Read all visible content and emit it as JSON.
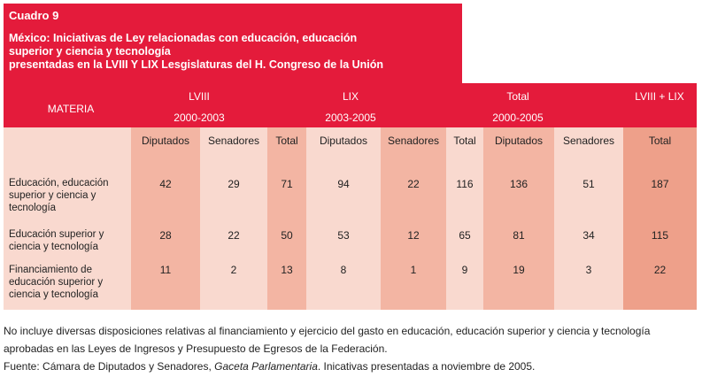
{
  "title": {
    "label": "Cuadro 9",
    "lines": [
      "México: Iniciativas de Ley relacionadas con educación, educación",
      "superior y ciencia y tecnología",
      "presentadas en la LVIII Y LIX Lesgislaturas del H. Congreso de la Unión"
    ]
  },
  "header": {
    "materia": "MATERIA",
    "groups": [
      {
        "name": "LVIII",
        "years": "2000-2003"
      },
      {
        "name": "LIX",
        "years": "2003-2005"
      },
      {
        "name": "Total",
        "years": "2000-2005"
      },
      {
        "name": "LVIII + LIX",
        "years": ""
      }
    ],
    "subheaders": [
      "Diputados",
      "Senadores",
      "Total",
      "Diputados",
      "Senadores",
      "Total",
      "Diputados",
      "Senadores",
      "Total"
    ]
  },
  "rows": [
    {
      "label": [
        "Educación, educación",
        "superior y ciencia y",
        "tecnología"
      ],
      "values": [
        "42",
        "29",
        "71",
        "94",
        "22",
        "116",
        "136",
        "51",
        "187"
      ]
    },
    {
      "label": [
        "Educación superior y",
        "ciencia y tecnología"
      ],
      "values": [
        "28",
        "22",
        "50",
        "53",
        "12",
        "65",
        "81",
        "34",
        "115"
      ]
    },
    {
      "label": [
        "Financiamiento de",
        "educación superior y",
        "ciencia y tecnología"
      ],
      "values": [
        "11",
        "2",
        "13",
        "8",
        "1",
        "9",
        "19",
        "3",
        "22"
      ]
    }
  ],
  "notes": {
    "line1": "No incluye diversas disposiciones relativas al financiamiento y ejercicio del gasto en educación, educación superior y ciencia y tecnología",
    "line2": "aprobadas en las Leyes de Ingresos y Presupuesto de Egresos de la Federación.",
    "source_prefix": "Fuente: Cámara de Diputados y Senadores, ",
    "source_italic": "Gaceta Parlamentaria",
    "source_suffix": ". Inicativas presentadas a noviembre de 2005."
  }
}
